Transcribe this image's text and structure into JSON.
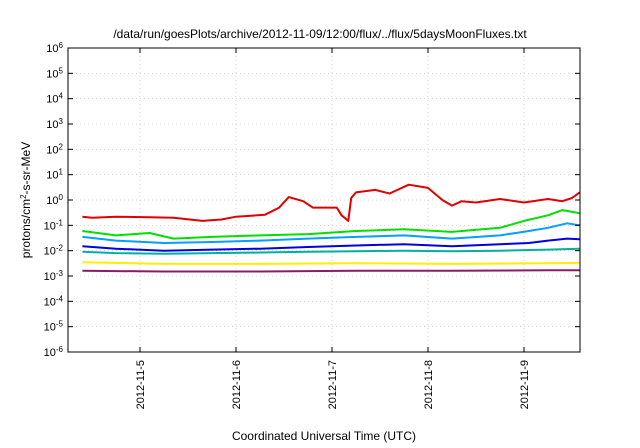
{
  "chart_data": {
    "type": "line",
    "title": "/data/run/goesPlots/archive/2012-11-09/12:00/flux/../flux/5daysMoonFluxes.txt",
    "xlabel": "Coordinated Universal Time (UTC)",
    "ylabel": "protons/cm2-s-sr-MeV",
    "ylabel_parts": {
      "pre": "protons/cm",
      "sup": "2",
      "post": "-s-sr-MeV"
    },
    "yscale": "log",
    "ylim_exp": [
      -6,
      6
    ],
    "y_ticks": [
      {
        "base": "10",
        "exp": "-6"
      },
      {
        "base": "10",
        "exp": "-5"
      },
      {
        "base": "10",
        "exp": "-4"
      },
      {
        "base": "10",
        "exp": "-3"
      },
      {
        "base": "10",
        "exp": "-2"
      },
      {
        "base": "10",
        "exp": "-1"
      },
      {
        "base": "10",
        "exp": "0"
      },
      {
        "base": "10",
        "exp": "1"
      },
      {
        "base": "10",
        "exp": "2"
      },
      {
        "base": "10",
        "exp": "3"
      },
      {
        "base": "10",
        "exp": "4"
      },
      {
        "base": "10",
        "exp": "5"
      },
      {
        "base": "10",
        "exp": "6"
      }
    ],
    "xlim": [
      "2012-11-04 06:00",
      "2012-11-09 14:00"
    ],
    "x_ticks": [
      {
        "label": "2012-11-5",
        "date": "2012-11-05 00:00"
      },
      {
        "label": "2012-11-6",
        "date": "2012-11-06 00:00"
      },
      {
        "label": "2012-11-7",
        "date": "2012-11-07 00:00"
      },
      {
        "label": "2012-11-8",
        "date": "2012-11-08 00:00"
      },
      {
        "label": "2012-11-9",
        "date": "2012-11-09 00:00"
      }
    ],
    "grid": true,
    "series": [
      {
        "color": "#e00000",
        "values": [
          [
            0.15,
            0.22
          ],
          [
            0.25,
            0.2
          ],
          [
            0.5,
            0.22
          ],
          [
            0.85,
            0.21
          ],
          [
            1.1,
            0.2
          ],
          [
            1.4,
            0.15
          ],
          [
            1.6,
            0.17
          ],
          [
            1.75,
            0.22
          ],
          [
            2.05,
            0.26
          ],
          [
            2.2,
            0.5
          ],
          [
            2.3,
            1.3
          ],
          [
            2.45,
            0.9
          ],
          [
            2.55,
            0.5
          ],
          [
            2.8,
            0.5
          ],
          [
            2.85,
            0.25
          ],
          [
            2.92,
            0.15
          ],
          [
            2.95,
            1.2
          ],
          [
            3.0,
            2.0
          ],
          [
            3.2,
            2.5
          ],
          [
            3.35,
            1.8
          ],
          [
            3.55,
            4.0
          ],
          [
            3.75,
            3.0
          ],
          [
            3.9,
            1.0
          ],
          [
            4.0,
            0.6
          ],
          [
            4.1,
            0.9
          ],
          [
            4.25,
            0.8
          ],
          [
            4.5,
            1.1
          ],
          [
            4.75,
            0.8
          ],
          [
            5.0,
            1.1
          ],
          [
            5.15,
            0.9
          ],
          [
            5.25,
            1.2
          ],
          [
            5.33,
            2.0
          ]
        ]
      },
      {
        "color": "#00e000",
        "values": [
          [
            0.15,
            0.06
          ],
          [
            0.5,
            0.04
          ],
          [
            0.85,
            0.05
          ],
          [
            1.1,
            0.03
          ],
          [
            1.5,
            0.035
          ],
          [
            2.0,
            0.04
          ],
          [
            2.5,
            0.045
          ],
          [
            3.0,
            0.06
          ],
          [
            3.5,
            0.07
          ],
          [
            4.0,
            0.055
          ],
          [
            4.5,
            0.08
          ],
          [
            4.75,
            0.15
          ],
          [
            5.0,
            0.25
          ],
          [
            5.15,
            0.4
          ],
          [
            5.33,
            0.3
          ]
        ]
      },
      {
        "color": "#00a0ff",
        "values": [
          [
            0.15,
            0.035
          ],
          [
            0.5,
            0.025
          ],
          [
            1.0,
            0.02
          ],
          [
            1.5,
            0.022
          ],
          [
            2.0,
            0.025
          ],
          [
            2.5,
            0.03
          ],
          [
            3.0,
            0.035
          ],
          [
            3.5,
            0.04
          ],
          [
            4.0,
            0.03
          ],
          [
            4.5,
            0.04
          ],
          [
            4.8,
            0.06
          ],
          [
            5.0,
            0.08
          ],
          [
            5.2,
            0.12
          ],
          [
            5.33,
            0.1
          ]
        ]
      },
      {
        "color": "#0000e0",
        "values": [
          [
            0.15,
            0.015
          ],
          [
            0.5,
            0.012
          ],
          [
            1.0,
            0.01
          ],
          [
            1.5,
            0.011
          ],
          [
            2.0,
            0.012
          ],
          [
            2.5,
            0.014
          ],
          [
            3.0,
            0.016
          ],
          [
            3.5,
            0.018
          ],
          [
            4.0,
            0.015
          ],
          [
            4.5,
            0.018
          ],
          [
            4.8,
            0.02
          ],
          [
            5.0,
            0.025
          ],
          [
            5.2,
            0.03
          ],
          [
            5.33,
            0.028
          ]
        ]
      },
      {
        "color": "#00b0a0",
        "values": [
          [
            0.15,
            0.009
          ],
          [
            0.5,
            0.008
          ],
          [
            1.0,
            0.0075
          ],
          [
            1.5,
            0.008
          ],
          [
            2.0,
            0.0085
          ],
          [
            2.5,
            0.009
          ],
          [
            3.0,
            0.0095
          ],
          [
            3.5,
            0.01
          ],
          [
            4.0,
            0.0095
          ],
          [
            4.5,
            0.01
          ],
          [
            5.0,
            0.011
          ],
          [
            5.33,
            0.012
          ]
        ]
      },
      {
        "color": "#ffee00",
        "values": [
          [
            0.15,
            0.0035
          ],
          [
            1.0,
            0.003
          ],
          [
            2.0,
            0.003
          ],
          [
            3.0,
            0.0032
          ],
          [
            4.0,
            0.003
          ],
          [
            5.0,
            0.0032
          ],
          [
            5.33,
            0.0033
          ]
        ]
      },
      {
        "color": "#8b1a6b",
        "values": [
          [
            0.15,
            0.0016
          ],
          [
            1.0,
            0.0015
          ],
          [
            2.0,
            0.0015
          ],
          [
            3.0,
            0.0016
          ],
          [
            4.0,
            0.0016
          ],
          [
            5.0,
            0.0017
          ],
          [
            5.33,
            0.0017
          ]
        ]
      }
    ]
  }
}
